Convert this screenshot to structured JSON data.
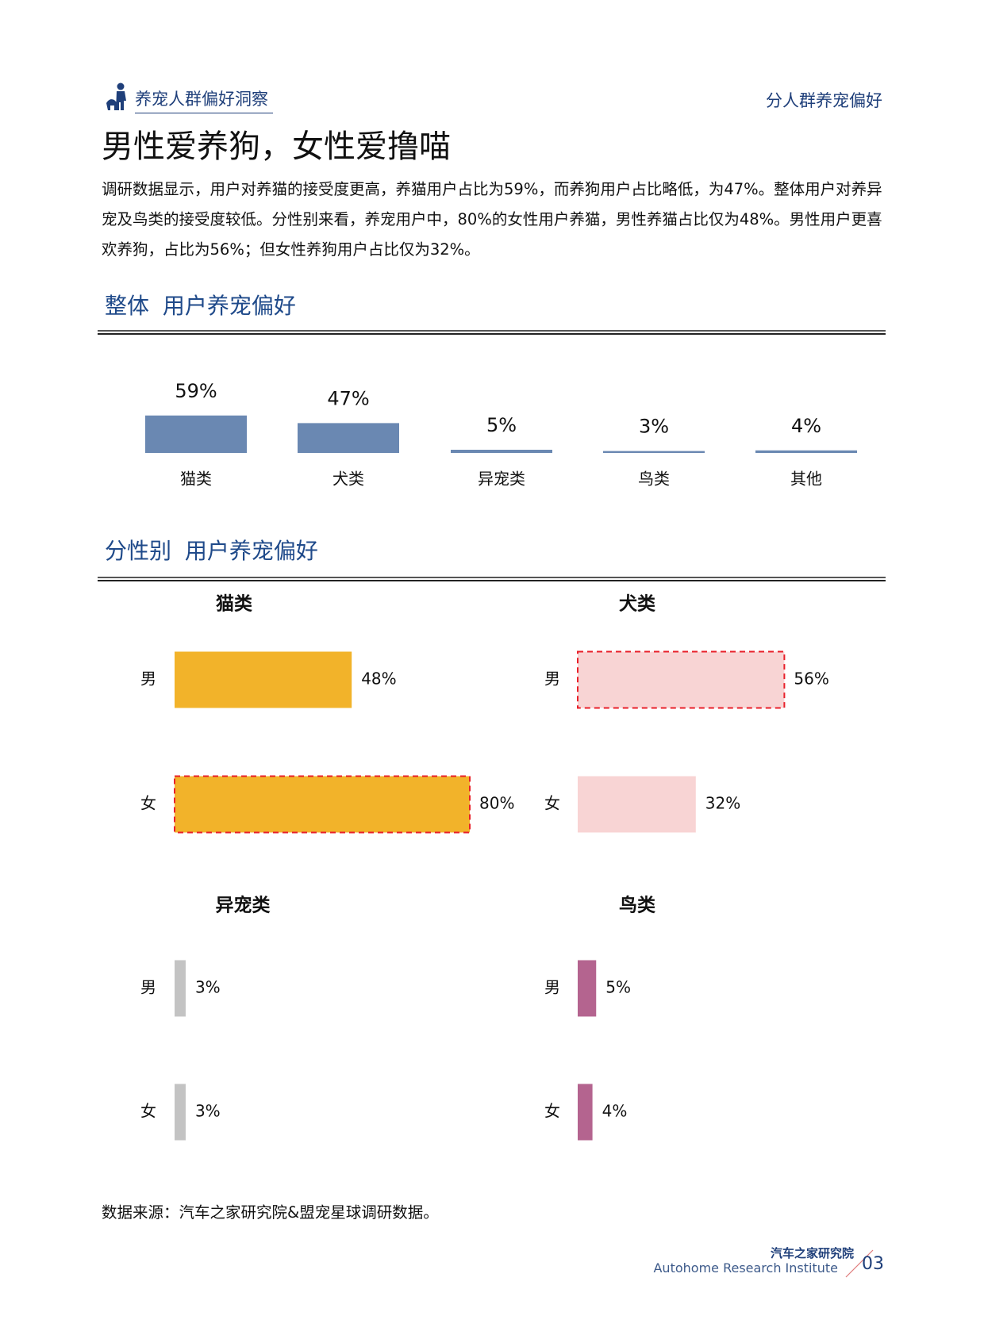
{
  "header": {
    "section": "养宠人群偏好洞察",
    "right": "分人群养宠偏好"
  },
  "title": "男性爱养狗，女性爱撸喵",
  "intro": "调研数据显示，用户对养猫的接受度更高，养猫用户占比为59%，而养狗用户占比略低，为47%。整体用户对养异宠及鸟类的接受度较低。分性别来看，养宠用户中，80%的女性用户养猫，男性养猫占比仅为48%。男性用户更喜欢养狗，占比为56%；但女性养狗用户占比仅为32%。",
  "gender_section_title": "分性别 用户养宠偏好",
  "chart_data": [
    {
      "type": "bar",
      "title": "整体 用户养宠偏好",
      "categories": [
        "猫类",
        "犬类",
        "异宠类",
        "鸟类",
        "其他"
      ],
      "values": [
        59,
        47,
        5,
        3,
        4
      ],
      "value_labels": [
        "59%",
        "47%",
        "5%",
        "3%",
        "4%"
      ],
      "color": "#6a88b2"
    },
    {
      "type": "hbar",
      "title": "猫类",
      "categories": [
        "男",
        "女"
      ],
      "values": [
        48,
        80
      ],
      "value_labels": [
        "48%",
        "80%"
      ],
      "color": "#f2b32a",
      "highlight": 1
    },
    {
      "type": "hbar",
      "title": "犬类",
      "categories": [
        "男",
        "女"
      ],
      "values": [
        56,
        32
      ],
      "value_labels": [
        "56%",
        "32%"
      ],
      "color": "#f8d4d4",
      "highlight": 0
    },
    {
      "type": "hbar",
      "title": "异宠类",
      "categories": [
        "男",
        "女"
      ],
      "values": [
        3,
        3
      ],
      "value_labels": [
        "3%",
        "3%"
      ],
      "color": "#c3c3c3"
    },
    {
      "type": "hbar",
      "title": "鸟类",
      "categories": [
        "男",
        "女"
      ],
      "values": [
        5,
        4
      ],
      "value_labels": [
        "5%",
        "4%"
      ],
      "color": "#b4648f"
    }
  ],
  "source": "数据来源：汽车之家研究院&盟宠星球调研数据。",
  "footer": {
    "org": "汽车之家研究院",
    "org_en": "Autohome Research Institute",
    "page": "03"
  }
}
